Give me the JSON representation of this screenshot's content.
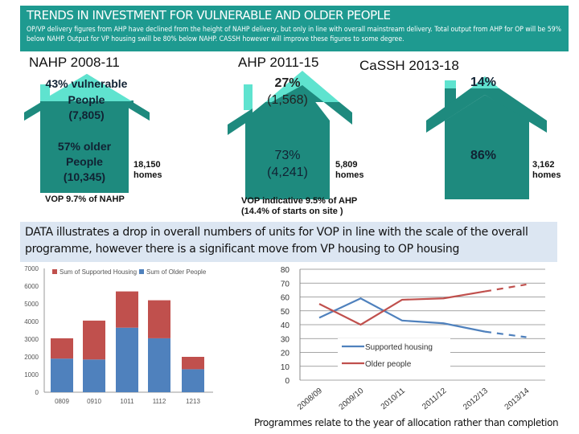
{
  "header": {
    "title": "TRENDS IN INVESTMENT FOR VULNERABLE AND OLDER PEOPLE",
    "subtitle": "OP/VP delivery figures from AHP have declined from the height of NAHP delivery, but only in line with overall mainstream delivery.  Total output from AHP for OP will be 59% below NAHP.  Output  for  VP housing swill be 80% below NAHP. CASSH however will improve these figures to some degree."
  },
  "programmes": [
    {
      "name": "NAHP 2008-11",
      "top_line1": "43% vulnerable",
      "top_line2": "People",
      "top_line3": "(7,805)",
      "body_line1": "57% older",
      "body_line2": "People",
      "body_line3": "(10,345)",
      "total_line1": "18,150",
      "total_line2": "homes",
      "note_line1": "VOP 9.7% of NAHP",
      "note_line2": "",
      "vulnerable_pct": 43
    },
    {
      "name": "AHP 2011-15",
      "top_line1": "27%",
      "top_line2": "(1,568)",
      "body_line1": "73%",
      "body_line2": "(4,241)",
      "total_line1": "5,809",
      "total_line2": "homes",
      "note_line1": "VOP indicative 9.5% of AHP",
      "note_line2": "(14.4% of starts on site )",
      "vulnerable_pct": 27
    },
    {
      "name": "CaSSH 2013-18",
      "top_line1": "14%",
      "body_line1": "86%",
      "total_line1": "3,162",
      "total_line2": "homes",
      "vulnerable_pct": 14
    }
  ],
  "band_text": "DATA illustrates a drop in overall numbers of units for VOP in line with the scale of the overall programme, however there is a significant move from VP housing to OP housing",
  "footnote": "Programmes relate to the year of allocation rather than completion",
  "colors": {
    "teal": "#1e8a7e",
    "light_teal": "#5fe3cf",
    "header": "#1e9a90",
    "blue": "#4f81bd",
    "red": "#c0504d"
  },
  "chart_data": [
    {
      "type": "bar",
      "stacked": true,
      "categories": [
        "0809",
        "0910",
        "1011",
        "1112",
        "1213"
      ],
      "series": [
        {
          "name": "Sum of Older People",
          "values": [
            1900,
            1850,
            3650,
            3050,
            1300
          ]
        },
        {
          "name": "Sum of Supported Housing",
          "values": [
            1150,
            2200,
            2050,
            2150,
            700
          ]
        }
      ],
      "yticks": [
        "0",
        "1000",
        "2000",
        "3000",
        "4000",
        "5000",
        "6000",
        "7000"
      ],
      "ylim": [
        0,
        7000
      ],
      "legend": "top"
    },
    {
      "type": "line",
      "categories": [
        "2008/09",
        "2009/10",
        "2010/11",
        "2011/12",
        "2012/13",
        "2013/14"
      ],
      "series": [
        {
          "name": "Supported housing",
          "values": [
            45,
            59,
            43,
            41,
            35,
            31
          ],
          "projected_from": "2012/13"
        },
        {
          "name": "Older people",
          "values": [
            55,
            40,
            58,
            59,
            64,
            69
          ],
          "projected_from": "2012/13"
        }
      ],
      "yticks": [
        "0",
        "10",
        "20",
        "30",
        "40",
        "50",
        "60",
        "70",
        "80"
      ],
      "ylim": [
        0,
        80
      ],
      "grid": true,
      "legend": "inside-bottom-left"
    }
  ]
}
